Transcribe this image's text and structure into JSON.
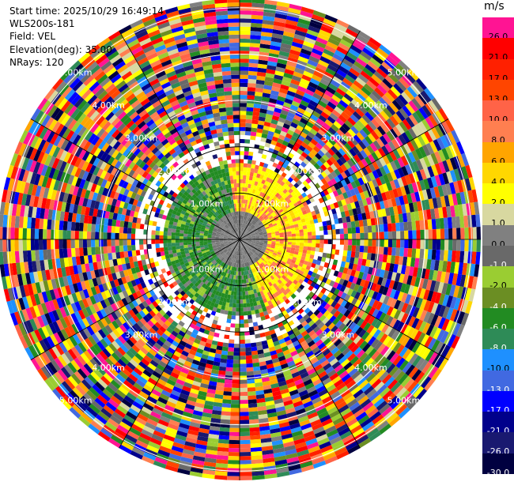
{
  "header": {
    "start_time": "Start time: 2025/10/29 16:49:14",
    "station": "WLS200s-181",
    "field": "Field: VEL",
    "elevation": "Elevation(deg): 35.00",
    "nrays": "NRays: 120"
  },
  "colorbar": {
    "unit": "m/s",
    "levels": [
      {
        "label": "26.0",
        "color": "#ff1493"
      },
      {
        "label": "21.0",
        "color": "#ff0000"
      },
      {
        "label": "17.0",
        "color": "#ff2000"
      },
      {
        "label": "13.0",
        "color": "#ff4500"
      },
      {
        "label": "10.0",
        "color": "#ff6347"
      },
      {
        "label": "8.0",
        "color": "#ff7f50"
      },
      {
        "label": "6.0",
        "color": "#ffa500"
      },
      {
        "label": "4.0",
        "color": "#ffd700"
      },
      {
        "label": "2.0",
        "color": "#ffff00"
      },
      {
        "label": "1.0",
        "color": "#d8d8a0"
      },
      {
        "label": "0.0",
        "color": "#808080"
      },
      {
        "label": "-1.0",
        "color": "#696969"
      },
      {
        "label": "-2.0",
        "color": "#9acd32"
      },
      {
        "label": "-4.0",
        "color": "#6b8e23"
      },
      {
        "label": "-6.0",
        "color": "#228b22"
      },
      {
        "label": "-8.0",
        "color": "#2e8b57"
      },
      {
        "label": "-10.0",
        "color": "#1e90ff"
      },
      {
        "label": "-13.0",
        "color": "#4169e1"
      },
      {
        "label": "-17.0",
        "color": "#0000ff"
      },
      {
        "label": "-21.0",
        "color": "#00008b"
      },
      {
        "label": "-26.0",
        "color": "#191970"
      },
      {
        "label": "-30.0",
        "color": "#000040"
      }
    ]
  },
  "chart_data": {
    "type": "heatmap",
    "projection": "polar PPI",
    "field": "VEL",
    "units": "m/s",
    "elevation_deg": 35.0,
    "n_rays": 120,
    "range_rings_km": [
      1.0,
      2.0,
      3.0,
      4.0,
      5.0
    ],
    "ring_labels": [
      "1.00km",
      "2.00km",
      "3.00km",
      "4.00km",
      "5.00km"
    ],
    "value_min": -30.0,
    "value_max": 30.0,
    "dominant_pattern": {
      "inner_north_east": "positive 2 to 10 m/s (yellow/salmon)",
      "inner_south_west": "negative -2 to -8 m/s (green)",
      "outer_ranges": "noise across full scale"
    }
  }
}
